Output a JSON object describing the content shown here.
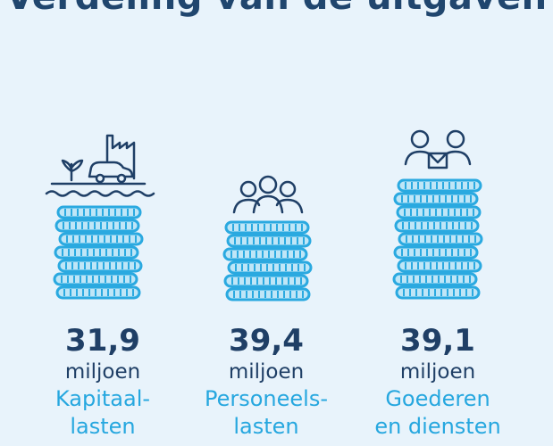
{
  "title": "Verdeling van de uitgaven",
  "colors": {
    "background": "#e8f3fb",
    "dark_blue": "#1f3f66",
    "accent_blue": "#26a7df",
    "coin_fill": "#bfe6f7",
    "coin_stroke": "#2aa9e0"
  },
  "items": [
    {
      "amount": "31,9",
      "unit": "miljoen",
      "label_line1": "Kapitaal-",
      "label_line2": "lasten",
      "icon": "factory-car-plant-icon"
    },
    {
      "amount": "39,4",
      "unit": "miljoen",
      "label_line1": "Personeels-",
      "label_line2": "lasten",
      "icon": "people-group-icon"
    },
    {
      "amount": "39,1",
      "unit": "miljoen",
      "label_line1": "Goederen",
      "label_line2": "en diensten",
      "icon": "people-with-box-icon"
    }
  ]
}
